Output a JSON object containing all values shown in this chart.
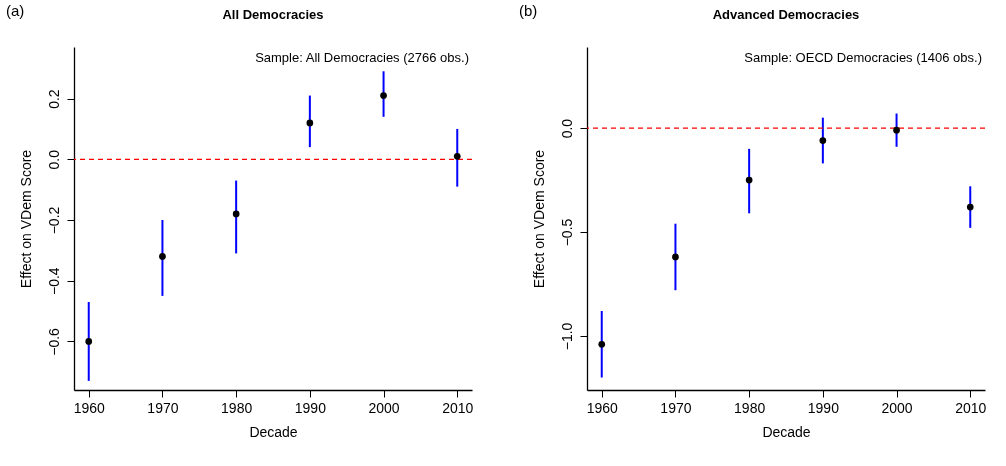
{
  "chart_data": [
    {
      "type": "scatter",
      "title": "All Democracies",
      "xlabel": "Decade",
      "ylabel": "Effect on VDem Score",
      "annotations": [
        "(a)",
        "Sample: All Democracies (2766 obs.)"
      ],
      "x": [
        1960,
        1970,
        1980,
        1990,
        2000,
        2010
      ],
      "values": [
        -0.6,
        -0.32,
        -0.18,
        0.12,
        0.21,
        0.01
      ],
      "errors": [
        [
          -0.73,
          -0.47
        ],
        [
          -0.45,
          -0.2
        ],
        [
          -0.31,
          -0.07
        ],
        [
          0.04,
          0.21
        ],
        [
          0.14,
          0.29
        ],
        [
          -0.09,
          0.1
        ]
      ],
      "color": "#000000",
      "marker": "circle",
      "xlim": [
        1958,
        2012
      ],
      "xticks": [
        1960,
        1970,
        1980,
        1990,
        2000,
        2010
      ],
      "ylim": [
        -0.76,
        0.37
      ],
      "yticks": [
        {
          "value": -0.6,
          "label": "−0.6"
        },
        {
          "value": -0.4,
          "label": "−0.4"
        },
        {
          "value": -0.2,
          "label": "−0.2"
        },
        {
          "value": 0,
          "label": "0.0"
        },
        {
          "value": 0.2,
          "label": "0.2"
        }
      ],
      "ref_lines": [
        {
          "axis": "y",
          "value": 0,
          "color": "#ff0000",
          "line_style": "dashed"
        }
      ],
      "grid": false
    },
    {
      "type": "scatter",
      "title": "Advanced Democracies",
      "xlabel": "Decade",
      "ylabel": "Effect on VDem Score",
      "annotations": [
        "(b)",
        "Sample: OECD Democracies (1406 obs.)"
      ],
      "x": [
        1960,
        1970,
        1980,
        1990,
        2000,
        2010
      ],
      "values": [
        -1.04,
        -0.62,
        -0.25,
        -0.06,
        -0.01,
        -0.38
      ],
      "errors": [
        [
          -1.2,
          -0.88
        ],
        [
          -0.78,
          -0.46
        ],
        [
          -0.41,
          -0.1
        ],
        [
          -0.17,
          0.05
        ],
        [
          -0.09,
          0.07
        ],
        [
          -0.48,
          -0.28
        ]
      ],
      "color": "#000000",
      "marker": "circle",
      "xlim": [
        1958,
        2012
      ],
      "xticks": [
        1960,
        1970,
        1980,
        1990,
        2000,
        2010
      ],
      "ylim": [
        -1.26,
        0.39
      ],
      "yticks": [
        {
          "value": -1,
          "label": "−1.0"
        },
        {
          "value": -0.5,
          "label": "−0.5"
        },
        {
          "value": 0,
          "label": "0.0"
        }
      ],
      "ref_lines": [
        {
          "axis": "y",
          "value": 0,
          "color": "#ff0000",
          "line_style": "dashed"
        }
      ],
      "grid": false
    }
  ]
}
